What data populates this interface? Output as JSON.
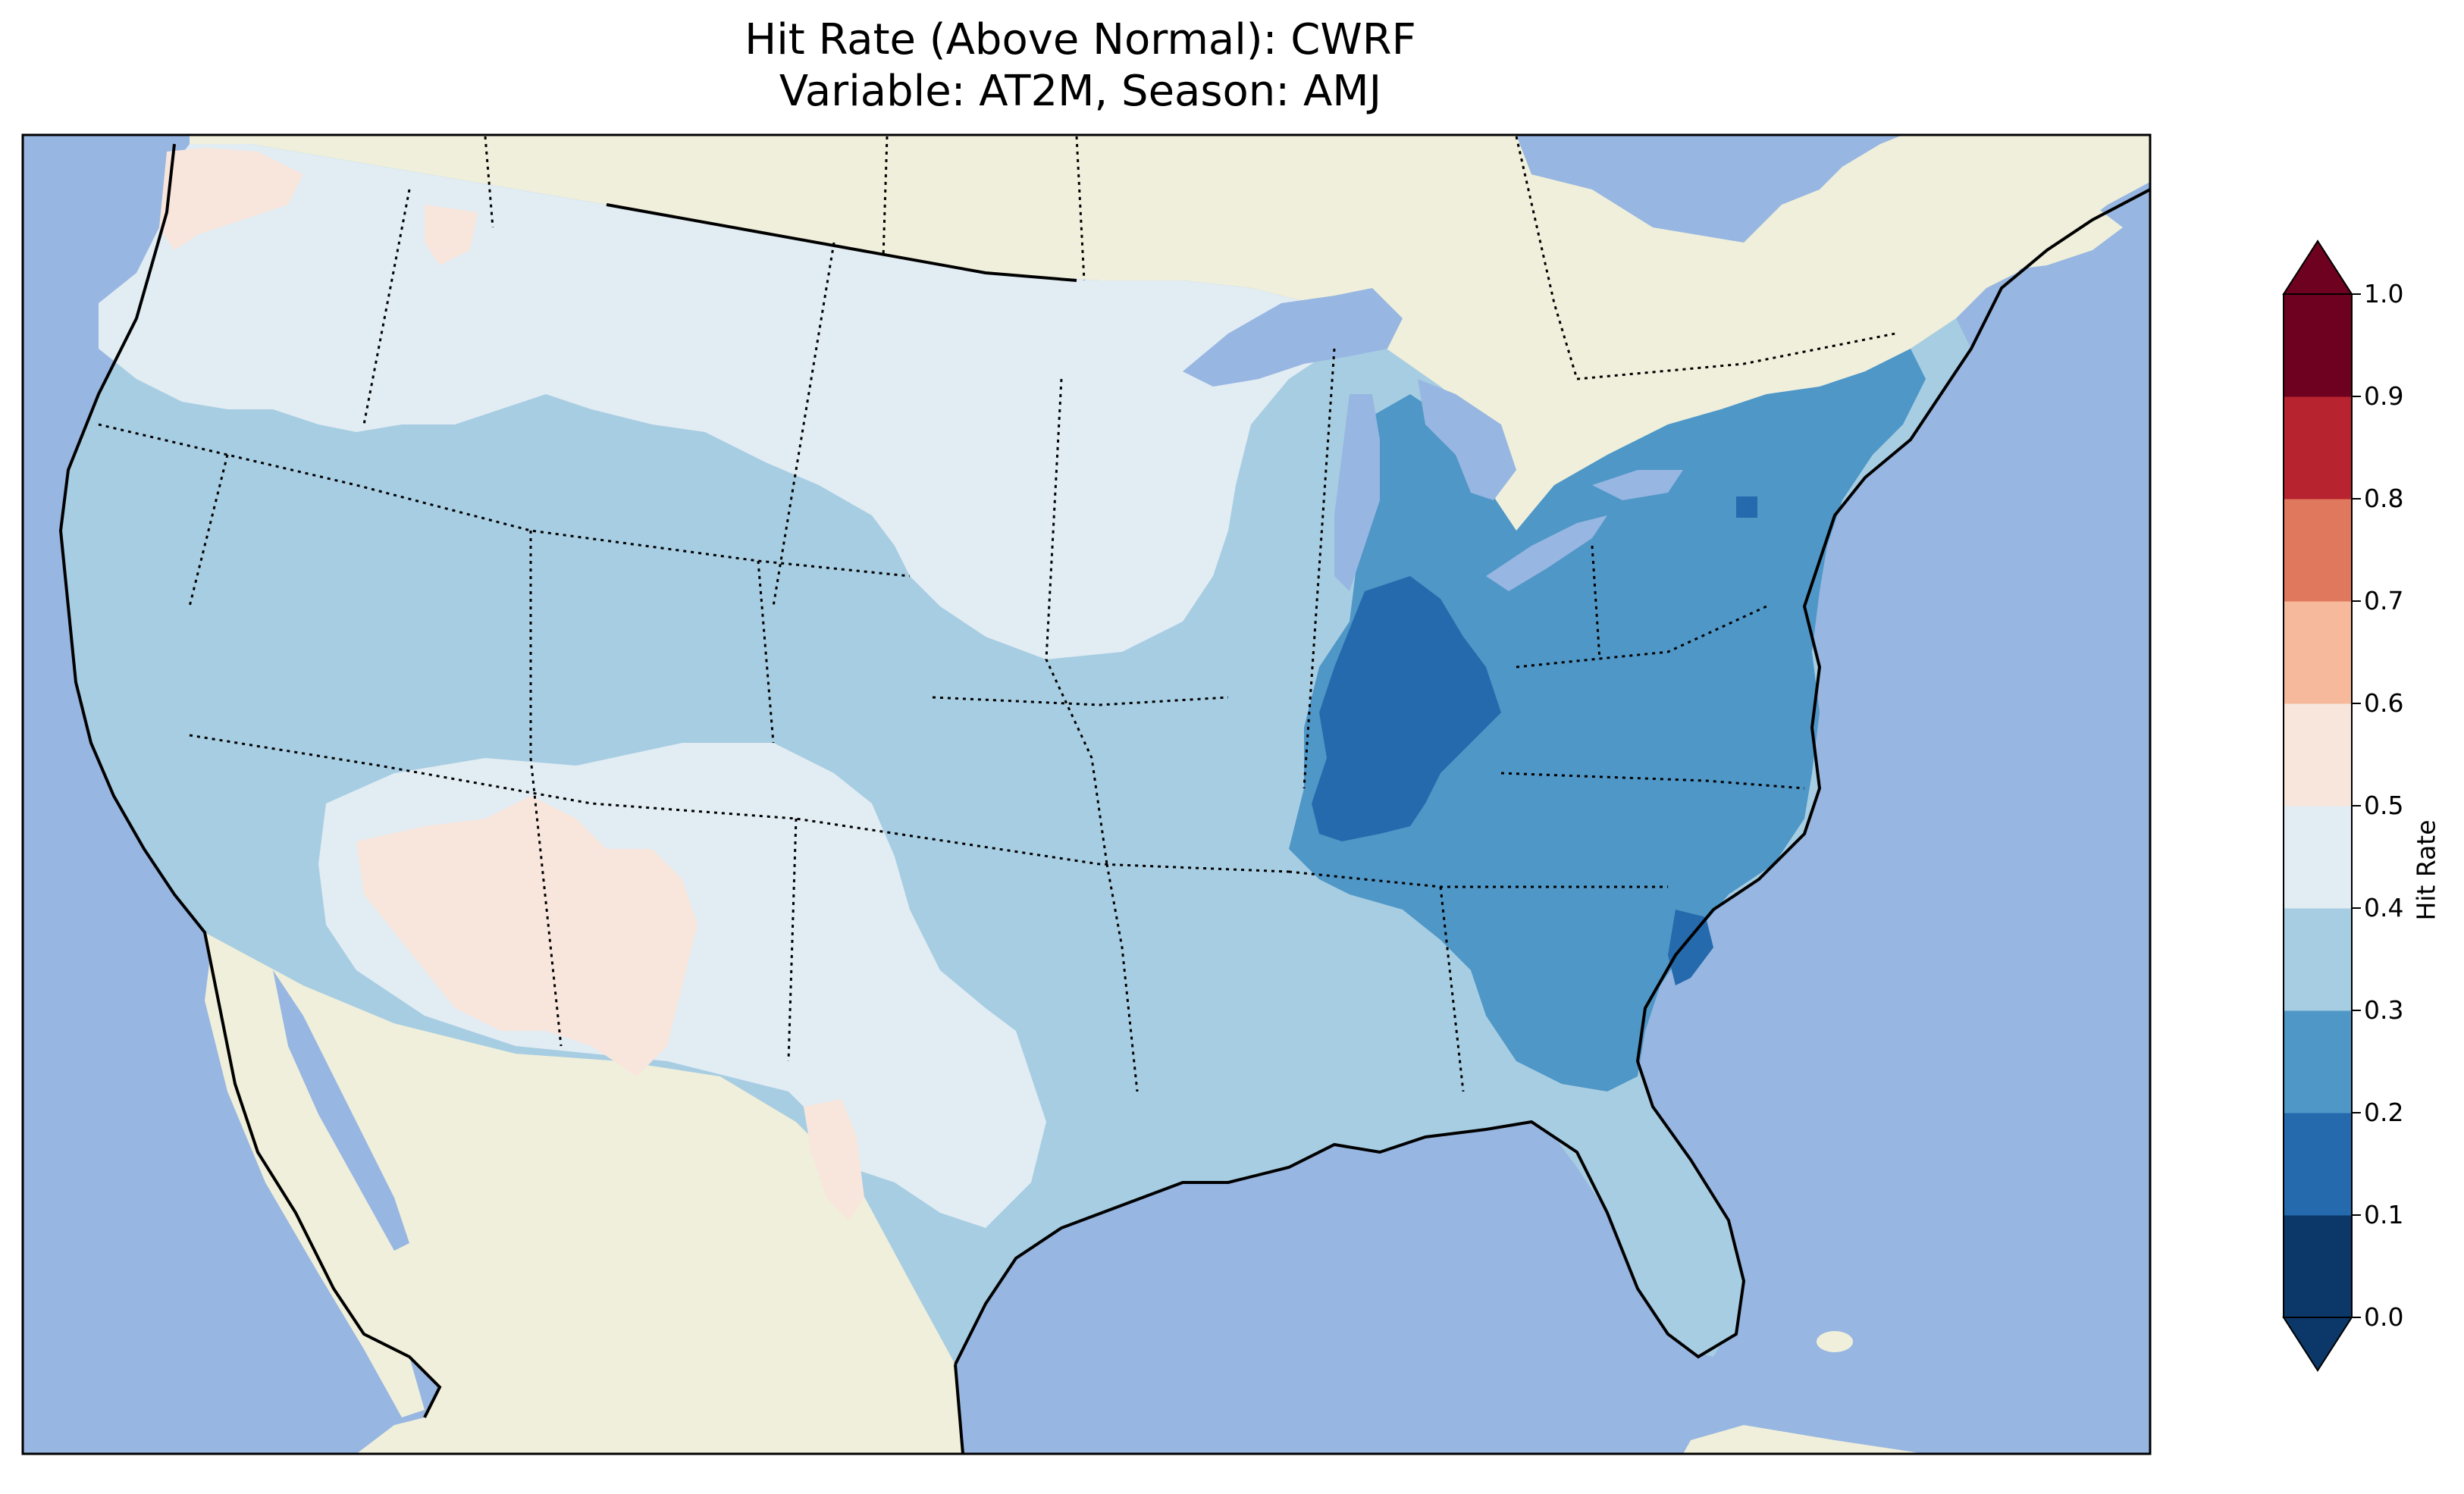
{
  "title": {
    "line1": "Hit Rate (Above Normal): CWRF",
    "line2": "Variable: AT2M, Season: AMJ"
  },
  "colorbar": {
    "label": "Hit Rate",
    "ticks": [
      "0.0",
      "0.1",
      "0.2",
      "0.3",
      "0.4",
      "0.5",
      "0.6",
      "0.7",
      "0.8",
      "0.9",
      "1.0"
    ],
    "colors": [
      "#053061",
      "#2166ac",
      "#4393c3",
      "#92c5de",
      "#d1e5f0",
      "#f7f7f7",
      "#fddbc7",
      "#f4a582",
      "#d6604d",
      "#b2182b",
      "#67001f"
    ],
    "bin_colors": [
      "#0b3769",
      "#246aad",
      "#4f97c7",
      "#a7cde2",
      "#e1ecf3",
      "#f8e6dd",
      "#f6b99b",
      "#e0785d",
      "#b7232e",
      "#6d011f"
    ]
  },
  "map": {
    "ocean_color": "#97b6e1",
    "land_color": "#efefdb",
    "regions": [
      {
        "name": "conus-base",
        "value": 0.35
      },
      {
        "name": "northwest-light",
        "value": 0.45
      },
      {
        "name": "northern-plains-light",
        "value": 0.45
      },
      {
        "name": "southwest-pink",
        "value": 0.55
      },
      {
        "name": "east-mid",
        "value": 0.25
      },
      {
        "name": "indiana-kentucky-dark",
        "value": 0.15
      },
      {
        "name": "south-carolina-coast-dark",
        "value": 0.15
      },
      {
        "name": "washington-pink",
        "value": 0.55
      },
      {
        "name": "texas-pink-patch",
        "value": 0.55
      }
    ]
  }
}
